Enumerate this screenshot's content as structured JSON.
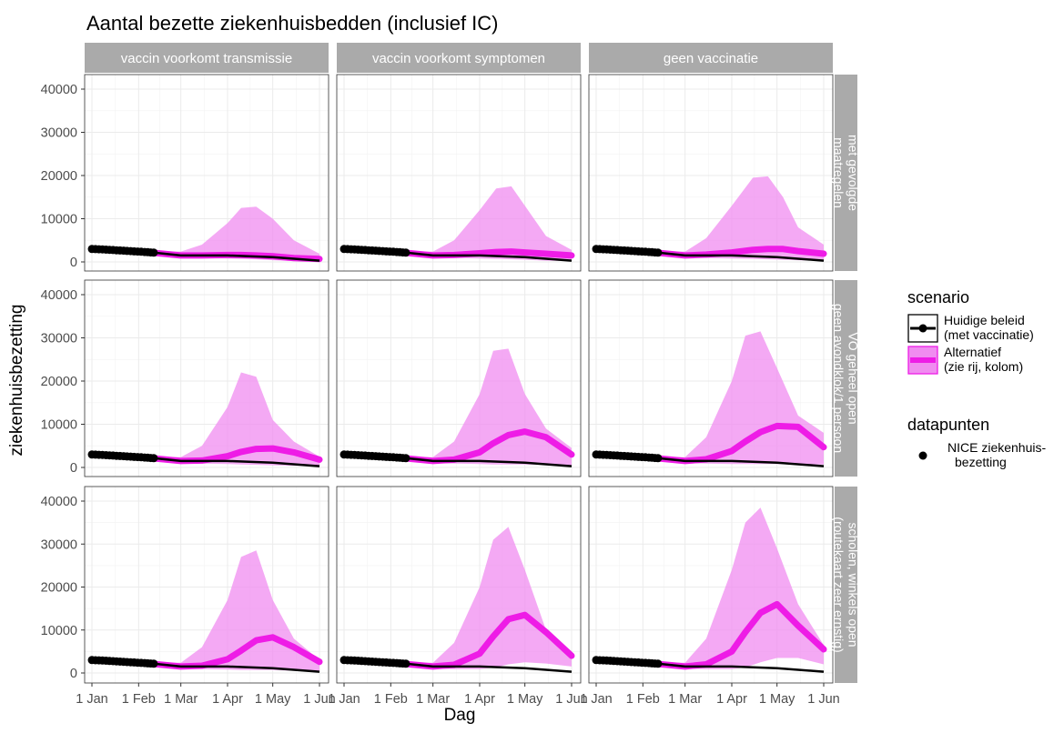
{
  "chart_data": {
    "type": "area",
    "title": "Aantal bezette ziekenhuisbedden (inclusief IC)",
    "xlabel": "Dag",
    "ylabel": "ziekenhuisbezetting",
    "x_ticks": [
      "1 Jan",
      "1 Feb",
      "1 Mar",
      "1 Apr",
      "1 May",
      "1 Jun"
    ],
    "x_tick_dates": [
      "2021-01-01",
      "2021-02-01",
      "2021-03-01",
      "2021-04-01",
      "2021-05-01",
      "2021-06-01"
    ],
    "ylim": [
      0,
      40000
    ],
    "y_ticks": [
      0,
      10000,
      20000,
      30000,
      40000
    ],
    "y_tick_labels": [
      "0",
      "10000",
      "20000",
      "30000",
      "40000"
    ],
    "grid": true,
    "columns": [
      "vaccin voorkomt transmissie",
      "vaccin voorkomt symptomen",
      "geen vaccinatie"
    ],
    "rows": [
      "met gevolgde maatregelen",
      "VO geheel open geen avondklok/1 persoon",
      "scholen, winkels open (routekaart zeer ernstig)"
    ],
    "row_label_lines": [
      [
        "met gevolgde",
        "maatregelen"
      ],
      [
        "VO geheel open",
        "geen avondklok/1 persoon"
      ],
      [
        "scholen, winkels open",
        "(routekaart zeer ernstig)"
      ]
    ],
    "legend": {
      "scenario_title": "scenario",
      "scenario_entries": [
        {
          "lines": [
            "Huidige beleid",
            " (met vaccinatie)"
          ],
          "color": "#000000"
        },
        {
          "lines": [
            "Alternatief",
            " (zie rij, kolom)"
          ],
          "color": "#ee1ce6",
          "fill": "#f08cf0"
        }
      ],
      "datapoints_title": "datapunten",
      "datapoints_entry": {
        "lines": [
          "NICE ziekenhuis-",
          "bezetting"
        ],
        "color": "#000000"
      },
      "placement": "right"
    },
    "colors": {
      "baseline": "#000000",
      "alternative": "#ee1ce6",
      "band": "#f08cf0",
      "strip": "#aaaaaa",
      "panel_border": "#333333",
      "grid": "#ebebeb"
    },
    "observations": {
      "name": "NICE ziekenhuisbezetting",
      "x": [
        "2021-01-01",
        "2021-01-08",
        "2021-01-15",
        "2021-01-22",
        "2021-01-29",
        "2021-02-05",
        "2021-02-11"
      ],
      "y": [
        3000,
        2900,
        2750,
        2600,
        2450,
        2300,
        2150
      ]
    },
    "baseline": {
      "name": "Huidige beleid (met vaccinatie)",
      "x": [
        "2021-01-01",
        "2021-02-11",
        "2021-03-01",
        "2021-04-01",
        "2021-05-01",
        "2021-06-01"
      ],
      "y": [
        3000,
        2150,
        1500,
        1500,
        1100,
        300
      ]
    },
    "panels": [
      {
        "row": 0,
        "col": 0,
        "x": [
          "2021-02-11",
          "2021-03-01",
          "2021-03-15",
          "2021-04-01",
          "2021-04-10",
          "2021-04-20",
          "2021-05-01",
          "2021-05-15",
          "2021-06-01"
        ],
        "mid": [
          2100,
          1500,
          1500,
          1600,
          1600,
          1500,
          1300,
          900,
          700
        ],
        "upper": [
          2400,
          2400,
          4000,
          9000,
          12500,
          12800,
          10000,
          5000,
          1900
        ],
        "lower": [
          1800,
          1000,
          900,
          800,
          700,
          600,
          400,
          200,
          100
        ]
      },
      {
        "row": 0,
        "col": 1,
        "x": [
          "2021-02-11",
          "2021-03-01",
          "2021-03-15",
          "2021-04-01",
          "2021-04-12",
          "2021-04-22",
          "2021-05-01",
          "2021-05-15",
          "2021-06-01"
        ],
        "mid": [
          2100,
          1500,
          1600,
          2000,
          2300,
          2400,
          2200,
          1900,
          1500
        ],
        "upper": [
          2400,
          2400,
          5000,
          12000,
          17000,
          17500,
          13000,
          6000,
          2800
        ],
        "lower": [
          1800,
          1000,
          900,
          800,
          700,
          600,
          500,
          300,
          200
        ]
      },
      {
        "row": 0,
        "col": 2,
        "x": [
          "2021-02-11",
          "2021-03-01",
          "2021-03-15",
          "2021-04-01",
          "2021-04-15",
          "2021-04-25",
          "2021-05-05",
          "2021-05-15",
          "2021-06-01"
        ],
        "mid": [
          2100,
          1500,
          1700,
          2200,
          2800,
          3000,
          3000,
          2500,
          1900
        ],
        "upper": [
          2400,
          2400,
          5500,
          13000,
          19500,
          19800,
          15000,
          8000,
          4000
        ],
        "lower": [
          1800,
          1000,
          900,
          800,
          700,
          600,
          500,
          400,
          300
        ]
      },
      {
        "row": 1,
        "col": 0,
        "x": [
          "2021-02-11",
          "2021-03-01",
          "2021-03-15",
          "2021-04-01",
          "2021-04-10",
          "2021-04-20",
          "2021-05-01",
          "2021-05-15",
          "2021-06-01"
        ],
        "mid": [
          2100,
          1500,
          1600,
          2600,
          3600,
          4300,
          4400,
          3500,
          1800
        ],
        "upper": [
          2400,
          2400,
          5000,
          14000,
          22000,
          21000,
          11000,
          6000,
          2500
        ],
        "lower": [
          1800,
          1000,
          900,
          800,
          700,
          600,
          500,
          400,
          300
        ]
      },
      {
        "row": 1,
        "col": 1,
        "x": [
          "2021-02-11",
          "2021-03-01",
          "2021-03-15",
          "2021-04-01",
          "2021-04-10",
          "2021-04-20",
          "2021-05-01",
          "2021-05-15",
          "2021-06-01"
        ],
        "mid": [
          2100,
          1500,
          1800,
          3500,
          5600,
          7500,
          8300,
          7000,
          3000
        ],
        "upper": [
          2400,
          2400,
          6000,
          17000,
          27000,
          27500,
          17000,
          9000,
          4500
        ],
        "lower": [
          1800,
          1000,
          900,
          800,
          700,
          700,
          700,
          600,
          500
        ]
      },
      {
        "row": 1,
        "col": 2,
        "x": [
          "2021-02-11",
          "2021-03-01",
          "2021-03-15",
          "2021-04-01",
          "2021-04-10",
          "2021-04-20",
          "2021-05-01",
          "2021-05-15",
          "2021-06-01"
        ],
        "mid": [
          2100,
          1500,
          1900,
          3800,
          6000,
          8200,
          9600,
          9400,
          4700
        ],
        "upper": [
          2400,
          2400,
          7000,
          20000,
          30500,
          31500,
          23000,
          12000,
          8000
        ],
        "lower": [
          1800,
          1000,
          900,
          800,
          800,
          800,
          800,
          700,
          700
        ]
      },
      {
        "row": 2,
        "col": 0,
        "x": [
          "2021-02-11",
          "2021-03-01",
          "2021-03-15",
          "2021-04-01",
          "2021-04-10",
          "2021-04-20",
          "2021-05-01",
          "2021-05-15",
          "2021-06-01"
        ],
        "mid": [
          2100,
          1500,
          1700,
          3200,
          5200,
          7600,
          8300,
          6000,
          2600
        ],
        "upper": [
          2400,
          2400,
          6000,
          17000,
          27000,
          28500,
          17000,
          8000,
          3000
        ],
        "lower": [
          1800,
          1000,
          900,
          800,
          700,
          700,
          700,
          500,
          300
        ]
      },
      {
        "row": 2,
        "col": 1,
        "x": [
          "2021-02-11",
          "2021-03-01",
          "2021-03-15",
          "2021-04-01",
          "2021-04-10",
          "2021-04-20",
          "2021-05-01",
          "2021-05-15",
          "2021-06-01"
        ],
        "mid": [
          2100,
          1500,
          1900,
          4500,
          8500,
          12500,
          13500,
          9500,
          4000
        ],
        "upper": [
          2400,
          2400,
          7000,
          20000,
          31000,
          34000,
          24000,
          10000,
          4800
        ],
        "lower": [
          1800,
          1000,
          900,
          900,
          1200,
          2000,
          2500,
          2200,
          1500
        ]
      },
      {
        "row": 2,
        "col": 2,
        "x": [
          "2021-02-11",
          "2021-03-01",
          "2021-03-15",
          "2021-04-01",
          "2021-04-10",
          "2021-04-20",
          "2021-05-01",
          "2021-05-15",
          "2021-06-01"
        ],
        "mid": [
          2100,
          1500,
          2000,
          5000,
          9500,
          14000,
          16000,
          11000,
          5500
        ],
        "upper": [
          2400,
          2400,
          8000,
          24000,
          35000,
          38500,
          29000,
          16000,
          6500
        ],
        "lower": [
          1800,
          1000,
          900,
          900,
          1300,
          2500,
          3500,
          3500,
          2000
        ]
      }
    ]
  }
}
